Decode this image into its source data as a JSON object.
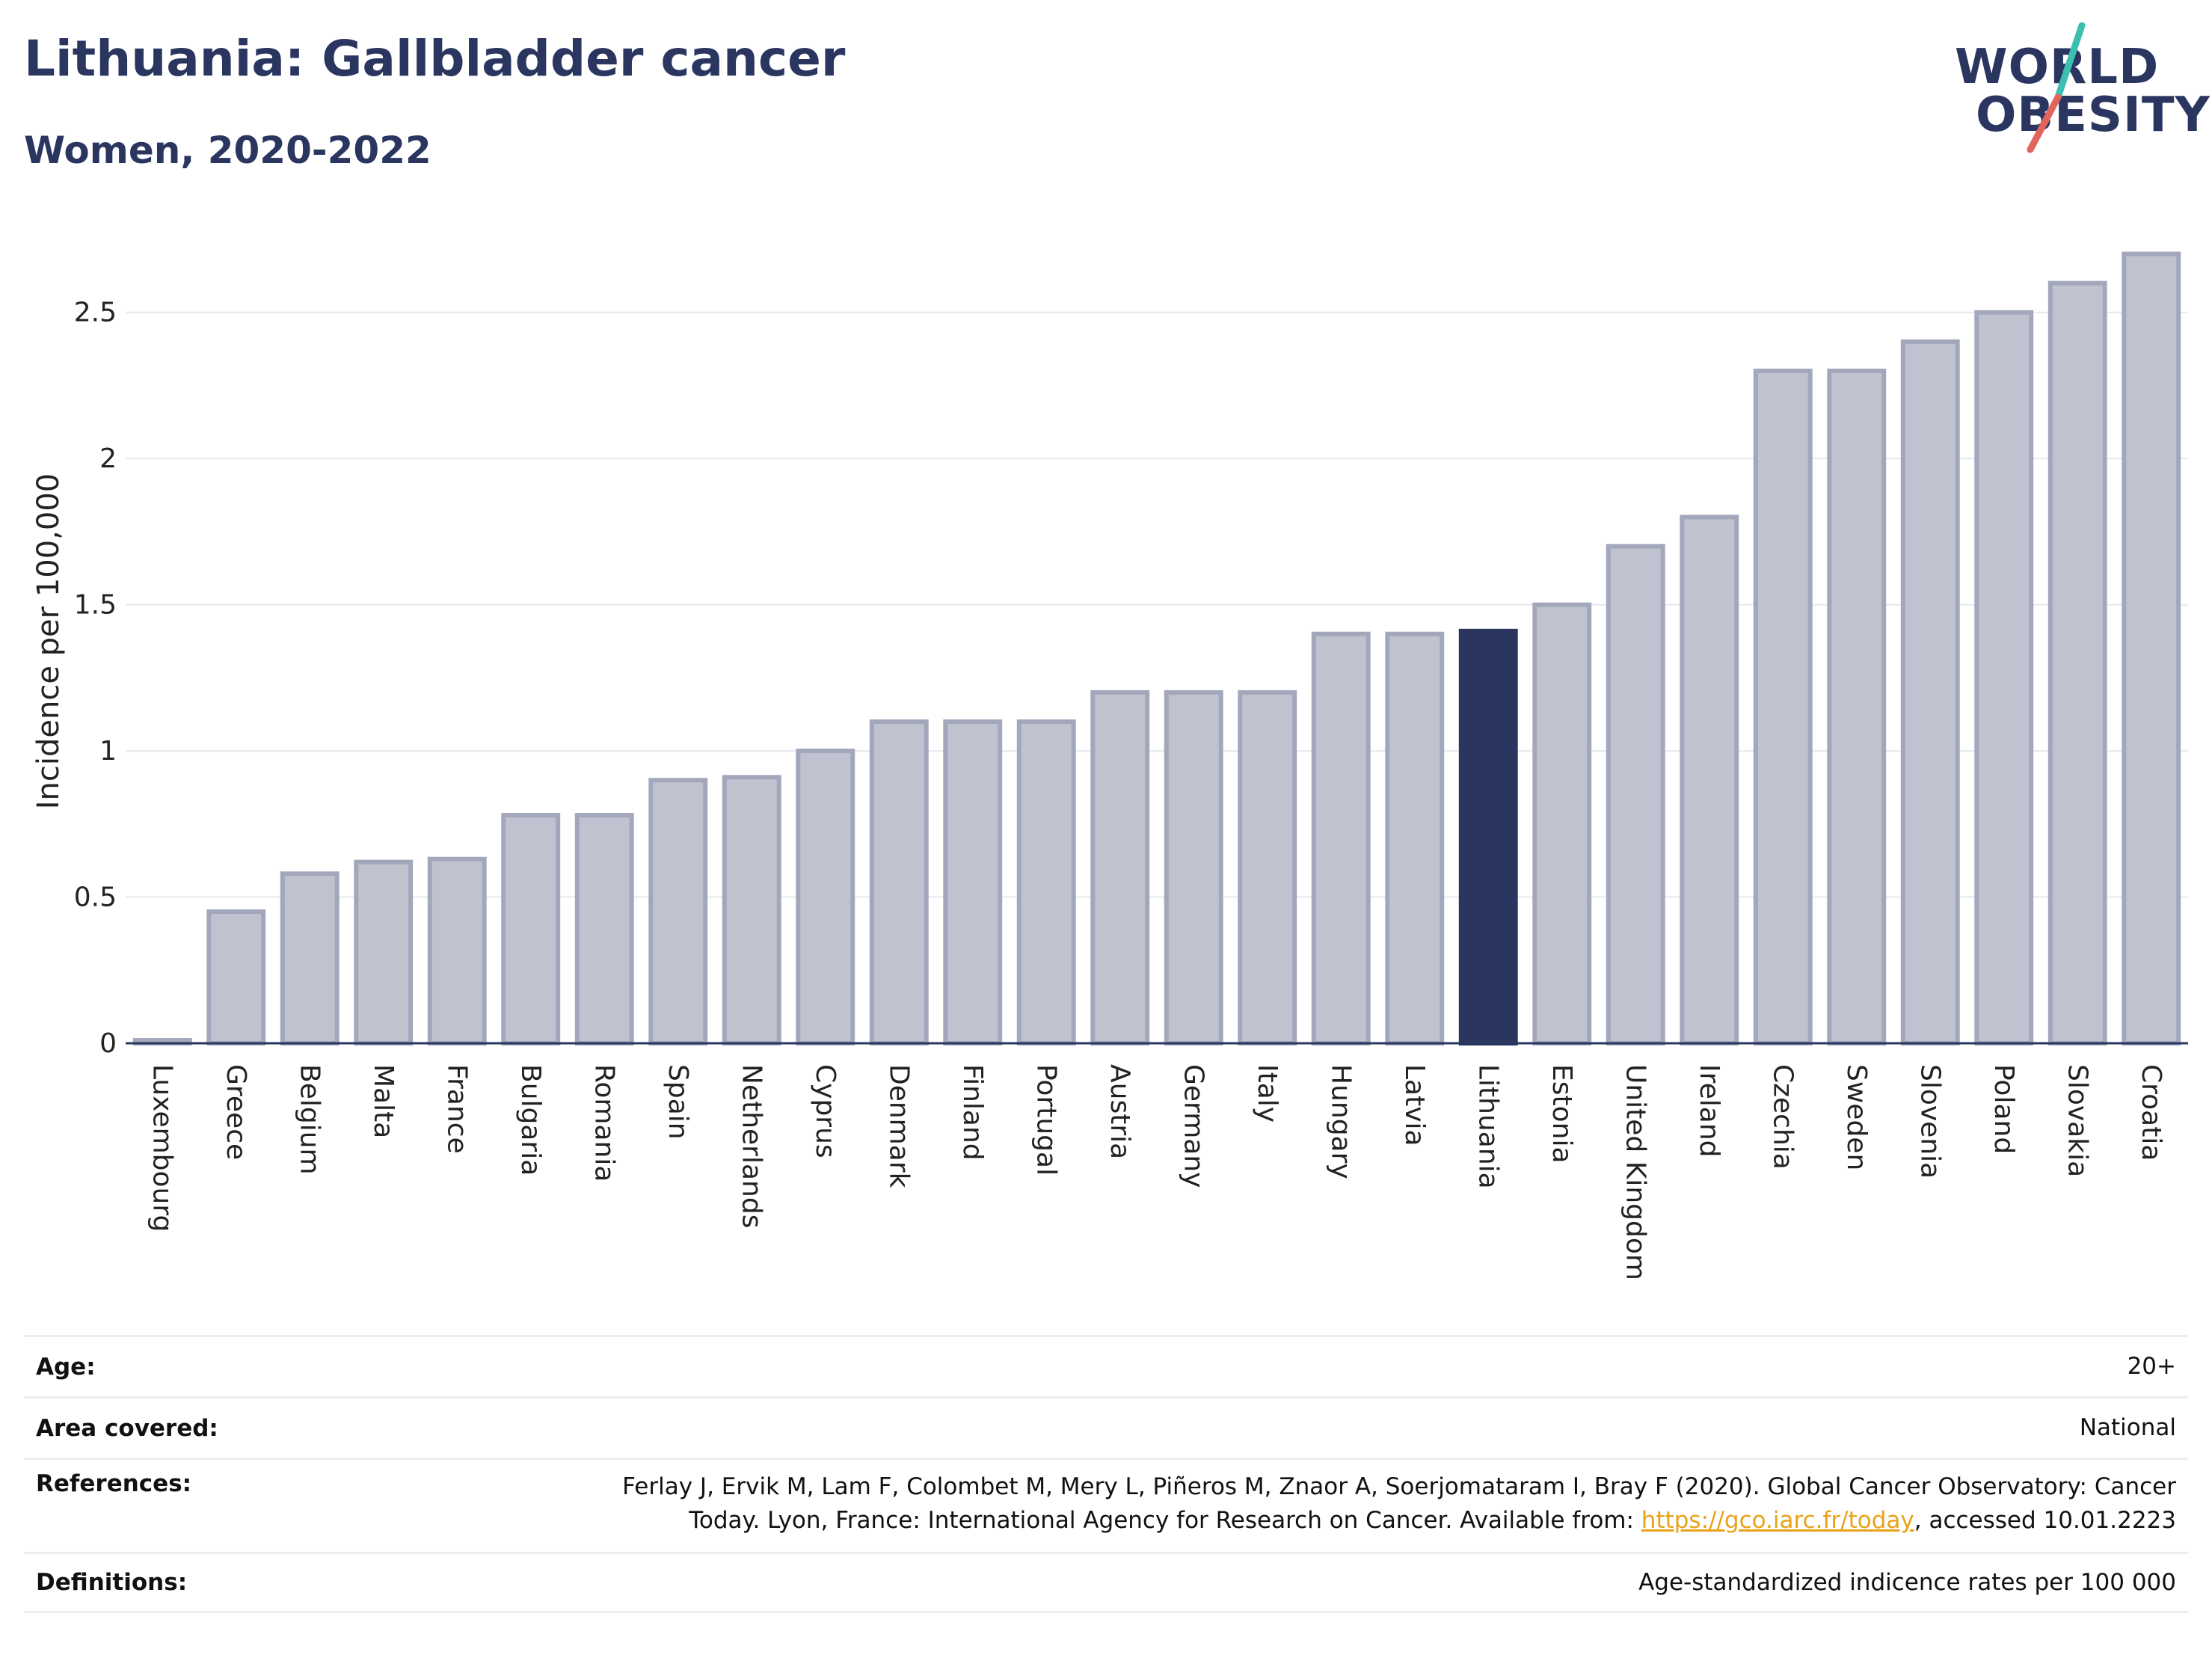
{
  "header": {
    "title": "Lithuania: Gallbladder cancer",
    "subtitle": "Women, 2020-2022"
  },
  "logo": {
    "line1": "WORLD",
    "line2": "OBESITY",
    "accent_teal": "#3bbfb0",
    "accent_red": "#e2655b"
  },
  "chart_data": {
    "type": "bar",
    "title": "Lithuania: Gallbladder cancer",
    "subtitle": "Women, 2020-2022",
    "xlabel": "",
    "ylabel": "Incidence per 100,000",
    "ylim": [
      0,
      2.75
    ],
    "yticks": [
      0,
      0.5,
      1,
      1.5,
      2,
      2.5
    ],
    "ytick_labels": [
      "0",
      "0.5",
      "1",
      "1.5",
      "2",
      "2.5"
    ],
    "grid": true,
    "highlight": "Lithuania",
    "colors": {
      "bar": "#c0c3cf",
      "bar_outline": "#a2a7bb",
      "highlight": "#2a3560",
      "grid": "#e6e8ee",
      "axis": "#2a3560"
    },
    "categories": [
      "Luxembourg",
      "Greece",
      "Belgium",
      "Malta",
      "France",
      "Bulgaria",
      "Romania",
      "Spain",
      "Netherlands",
      "Cyprus",
      "Denmark",
      "Finland",
      "Portugal",
      "Austria",
      "Germany",
      "Italy",
      "Hungary",
      "Latvia",
      "Lithuania",
      "Estonia",
      "United Kingdom",
      "Ireland",
      "Czechia",
      "Sweden",
      "Slovenia",
      "Poland",
      "Slovakia",
      "Croatia"
    ],
    "values": [
      0.01,
      0.45,
      0.58,
      0.62,
      0.63,
      0.78,
      0.78,
      0.9,
      0.91,
      1.0,
      1.1,
      1.1,
      1.1,
      1.2,
      1.2,
      1.2,
      1.4,
      1.4,
      1.41,
      1.5,
      1.7,
      1.8,
      2.3,
      2.3,
      2.4,
      2.5,
      2.6,
      2.7
    ]
  },
  "info": {
    "rows": [
      {
        "key": "Age:",
        "value": "20+"
      },
      {
        "key": "Area covered:",
        "value": "National"
      },
      {
        "key": "References:",
        "value_pre": "Ferlay J, Ervik M, Lam F, Colombet M, Mery L, Piñeros M, Znaor A, Soerjomataram I, Bray F (2020). Global Cancer Observatory: Cancer Today. Lyon, France: International Agency for Research on Cancer. Available from: ",
        "link": "https://gco.iarc.fr/today",
        "value_post": ", accessed 10.01.2223"
      },
      {
        "key": "Definitions:",
        "value": "Age-standardized indicence rates per 100 000"
      }
    ]
  }
}
